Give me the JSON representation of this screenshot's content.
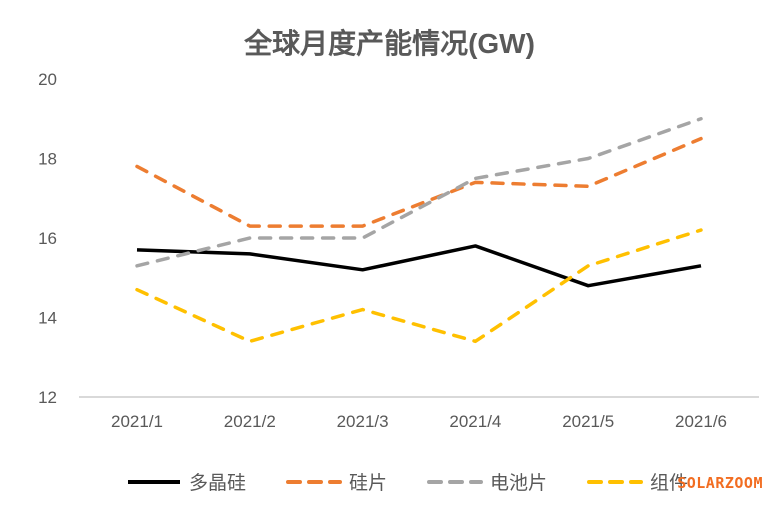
{
  "title": "全球月度产能情况(GW)",
  "watermark": "SOLARZOOM",
  "colors": {
    "title_text": "#595959",
    "axis_text": "#595959",
    "axis_line": "#d9d9d9",
    "watermark": "#f26d21",
    "background": "#ffffff"
  },
  "chart_data": {
    "type": "line",
    "title": "全球月度产能情况(GW)",
    "categories": [
      "2021/1",
      "2021/2",
      "2021/3",
      "2021/4",
      "2021/5",
      "2021/6"
    ],
    "series": [
      {
        "key": "polysilicon",
        "name": "多晶硅",
        "color": "#000000",
        "style": "solid",
        "values": [
          15.7,
          15.6,
          15.2,
          15.8,
          14.8,
          15.3
        ]
      },
      {
        "key": "wafer",
        "name": "硅片",
        "color": "#ed7d31",
        "style": "dashed",
        "values": [
          17.8,
          16.3,
          16.3,
          17.4,
          17.3,
          18.5
        ]
      },
      {
        "key": "cell",
        "name": "电池片",
        "color": "#a5a5a5",
        "style": "dashed",
        "values": [
          15.3,
          16.0,
          16.0,
          17.5,
          18.0,
          19.0
        ]
      },
      {
        "key": "module",
        "name": "组件",
        "color": "#ffc000",
        "style": "dashed",
        "values": [
          14.7,
          13.4,
          14.2,
          13.4,
          15.3,
          16.2
        ]
      }
    ],
    "y_ticks": [
      12,
      14,
      16,
      18,
      20
    ],
    "ylim": [
      12,
      20
    ],
    "xlabel": "",
    "ylabel": "",
    "grid": false,
    "legend_position": "bottom"
  }
}
